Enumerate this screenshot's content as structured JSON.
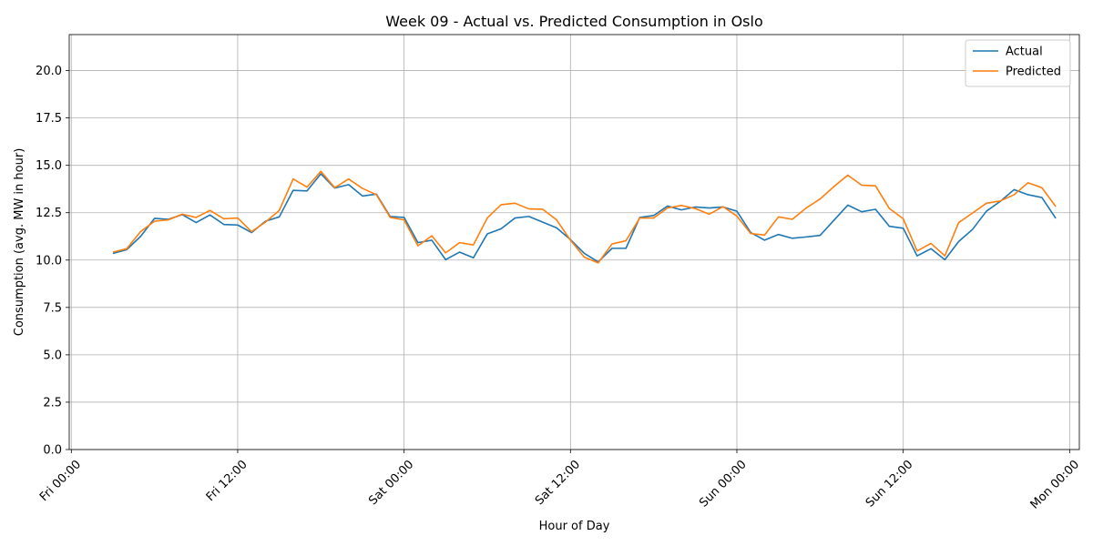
{
  "chart_data": {
    "type": "line",
    "title": "Week 09 - Actual vs. Predicted Consumption in Oslo",
    "xlabel": "Hour of Day",
    "ylabel": "Consumption (avg. MW in hour)",
    "x_unit": "hours",
    "x_ticks": [
      {
        "value": 0,
        "label": "Fri 00:00"
      },
      {
        "value": 12,
        "label": "Fri 12:00"
      },
      {
        "value": 24,
        "label": "Sat 00:00"
      },
      {
        "value": 36,
        "label": "Sat 12:00"
      },
      {
        "value": 48,
        "label": "Sun 00:00"
      },
      {
        "value": 60,
        "label": "Sun 12:00"
      },
      {
        "value": 72,
        "label": "Mon 00:00"
      }
    ],
    "y_ticks": [
      "0.0",
      "2.5",
      "5.0",
      "7.5",
      "10.0",
      "12.5",
      "15.0",
      "17.5",
      "20.0"
    ],
    "xlim": [
      -0.15,
      72.7
    ],
    "ylim": [
      0,
      21.9
    ],
    "grid": true,
    "legend_position": "top-right",
    "x": [
      3,
      4,
      5,
      6,
      7,
      8,
      9,
      10,
      11,
      12,
      13,
      14,
      15,
      16,
      17,
      18,
      19,
      20,
      21,
      22,
      23,
      24,
      25,
      26,
      27,
      28,
      29,
      30,
      31,
      32,
      33,
      34,
      35,
      36,
      37,
      38,
      39,
      40,
      41,
      42,
      43,
      44,
      45,
      46,
      47,
      48,
      49,
      50,
      51,
      52,
      53,
      54,
      55,
      56,
      57,
      58,
      59,
      60,
      61,
      62,
      63,
      64,
      65,
      66,
      67,
      68,
      69,
      70,
      71
    ],
    "series": [
      {
        "name": "Actual",
        "color": "#1f77b4",
        "values": [
          10.35,
          10.55,
          11.25,
          12.2,
          12.15,
          12.4,
          11.98,
          12.38,
          11.88,
          11.85,
          11.45,
          12.05,
          12.28,
          13.68,
          13.65,
          14.55,
          13.8,
          13.98,
          13.38,
          13.48,
          12.3,
          12.25,
          10.92,
          11.05,
          10.02,
          10.42,
          10.12,
          11.38,
          11.65,
          12.22,
          12.3,
          12.0,
          11.7,
          11.08,
          10.35,
          9.9,
          10.62,
          10.62,
          12.25,
          12.35,
          12.85,
          12.65,
          12.8,
          12.75,
          12.8,
          12.58,
          11.45,
          11.05,
          11.35,
          11.15,
          11.22,
          11.3,
          12.1,
          12.9,
          12.55,
          12.68,
          11.78,
          11.68,
          10.22,
          10.6,
          10.02,
          10.98,
          11.62,
          12.58,
          13.1,
          13.72,
          13.45,
          13.3,
          12.2
        ]
      },
      {
        "name": "Predicted",
        "color": "#ff7f0e",
        "values": [
          10.42,
          10.6,
          11.5,
          12.05,
          12.12,
          12.42,
          12.25,
          12.62,
          12.18,
          12.22,
          11.5,
          12.0,
          12.62,
          14.28,
          13.85,
          14.68,
          13.82,
          14.28,
          13.78,
          13.45,
          12.25,
          12.12,
          10.75,
          11.28,
          10.38,
          10.92,
          10.8,
          12.22,
          12.92,
          13.0,
          12.7,
          12.68,
          12.12,
          11.05,
          10.15,
          9.85,
          10.85,
          11.02,
          12.22,
          12.22,
          12.75,
          12.88,
          12.72,
          12.42,
          12.82,
          12.32,
          11.4,
          11.32,
          12.28,
          12.15,
          12.75,
          13.22,
          13.88,
          14.48,
          13.95,
          13.92,
          12.72,
          12.18,
          10.48,
          10.88,
          10.22,
          11.98,
          12.48,
          13.0,
          13.12,
          13.45,
          14.08,
          13.82,
          12.82
        ]
      }
    ]
  }
}
